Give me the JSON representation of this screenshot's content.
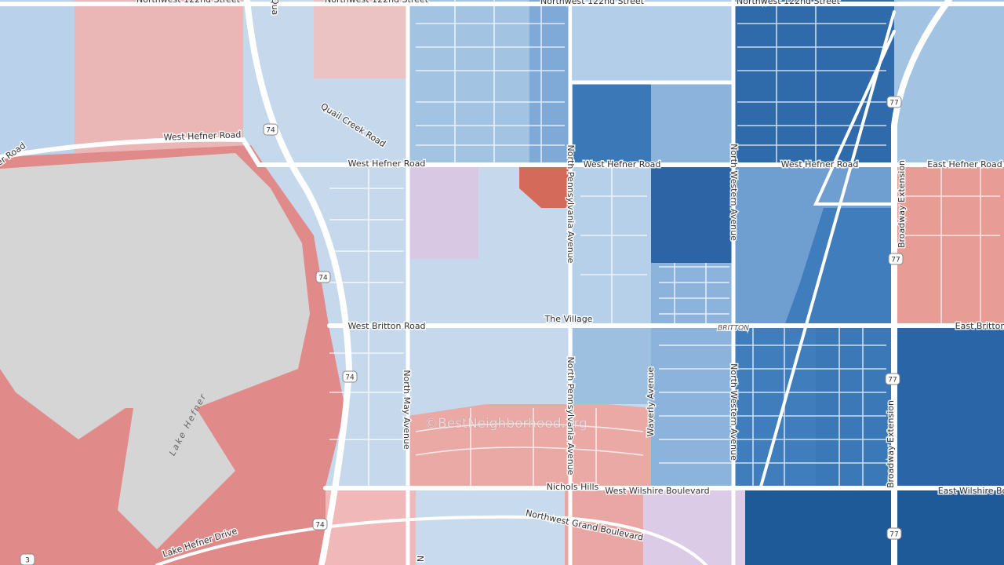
{
  "map": {
    "labels": [
      "Northwest 122nd Street",
      "Northwest 122nd Street",
      "Northwest 122nd Street",
      "Northwest 122nd Street",
      "Qua",
      "Quail Creek Road",
      "fner Road",
      "West Hefner Road",
      "West Hefner Road",
      "West Hefner Road",
      "West Hefner Road",
      "East Hefner Road",
      "North Pennsylvania Avenue",
      "North Western Avenue",
      "Broadway Extension",
      "West Britton Road",
      "The Village",
      "BRITTON",
      "East Britton",
      "North May Avenue",
      "North Pennsylvania Avenue",
      "Waverly Avenue",
      "North Western Avenue",
      "Broadway Extension",
      "Lake Hefner",
      "Nichols Hills",
      "West Wilshire Boulevard",
      "East Wilshire Bo",
      "Northwest Grand Boulevard",
      "Lake Hefner Drive",
      "N"
    ],
    "shields": [
      "74",
      "74",
      "74",
      "74",
      "77",
      "77",
      "77",
      "77",
      "3"
    ],
    "watermark": "©BestNeighborhood.org"
  }
}
